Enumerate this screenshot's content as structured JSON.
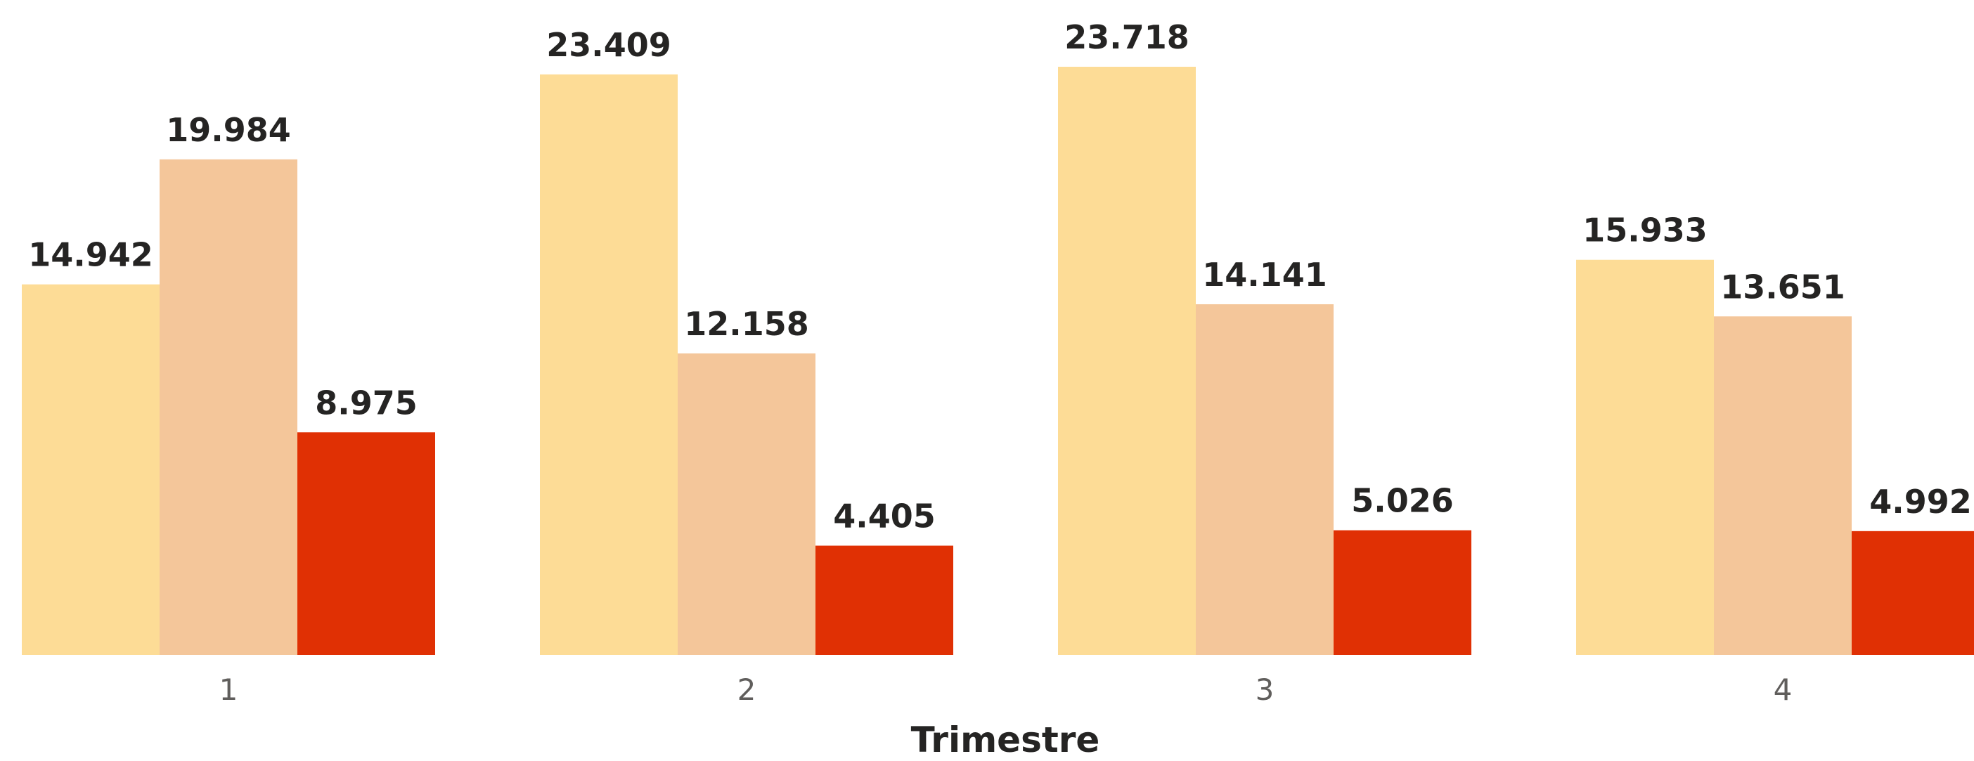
{
  "chart_data": {
    "type": "bar",
    "xlabel": "Trimestre",
    "ylabel": "",
    "title": "",
    "categories": [
      "1",
      "2",
      "3",
      "4"
    ],
    "series": [
      {
        "values": [
          14942,
          23409,
          23718,
          15933
        ],
        "labels": [
          "14.942",
          "23.409",
          "23.718",
          "15.933"
        ],
        "color": "#FDDC96"
      },
      {
        "values": [
          19984,
          12158,
          14141,
          13651
        ],
        "labels": [
          "19.984",
          "12.158",
          "14.141",
          "13.651"
        ],
        "color": "#F4C69A"
      },
      {
        "values": [
          8975,
          4405,
          5026,
          4992
        ],
        "labels": [
          "8.975",
          "4.405",
          "5.026",
          "4.992"
        ],
        "color": "#E03004"
      }
    ],
    "ylim": [
      0,
      26500
    ],
    "grid": false,
    "legend": "none"
  }
}
